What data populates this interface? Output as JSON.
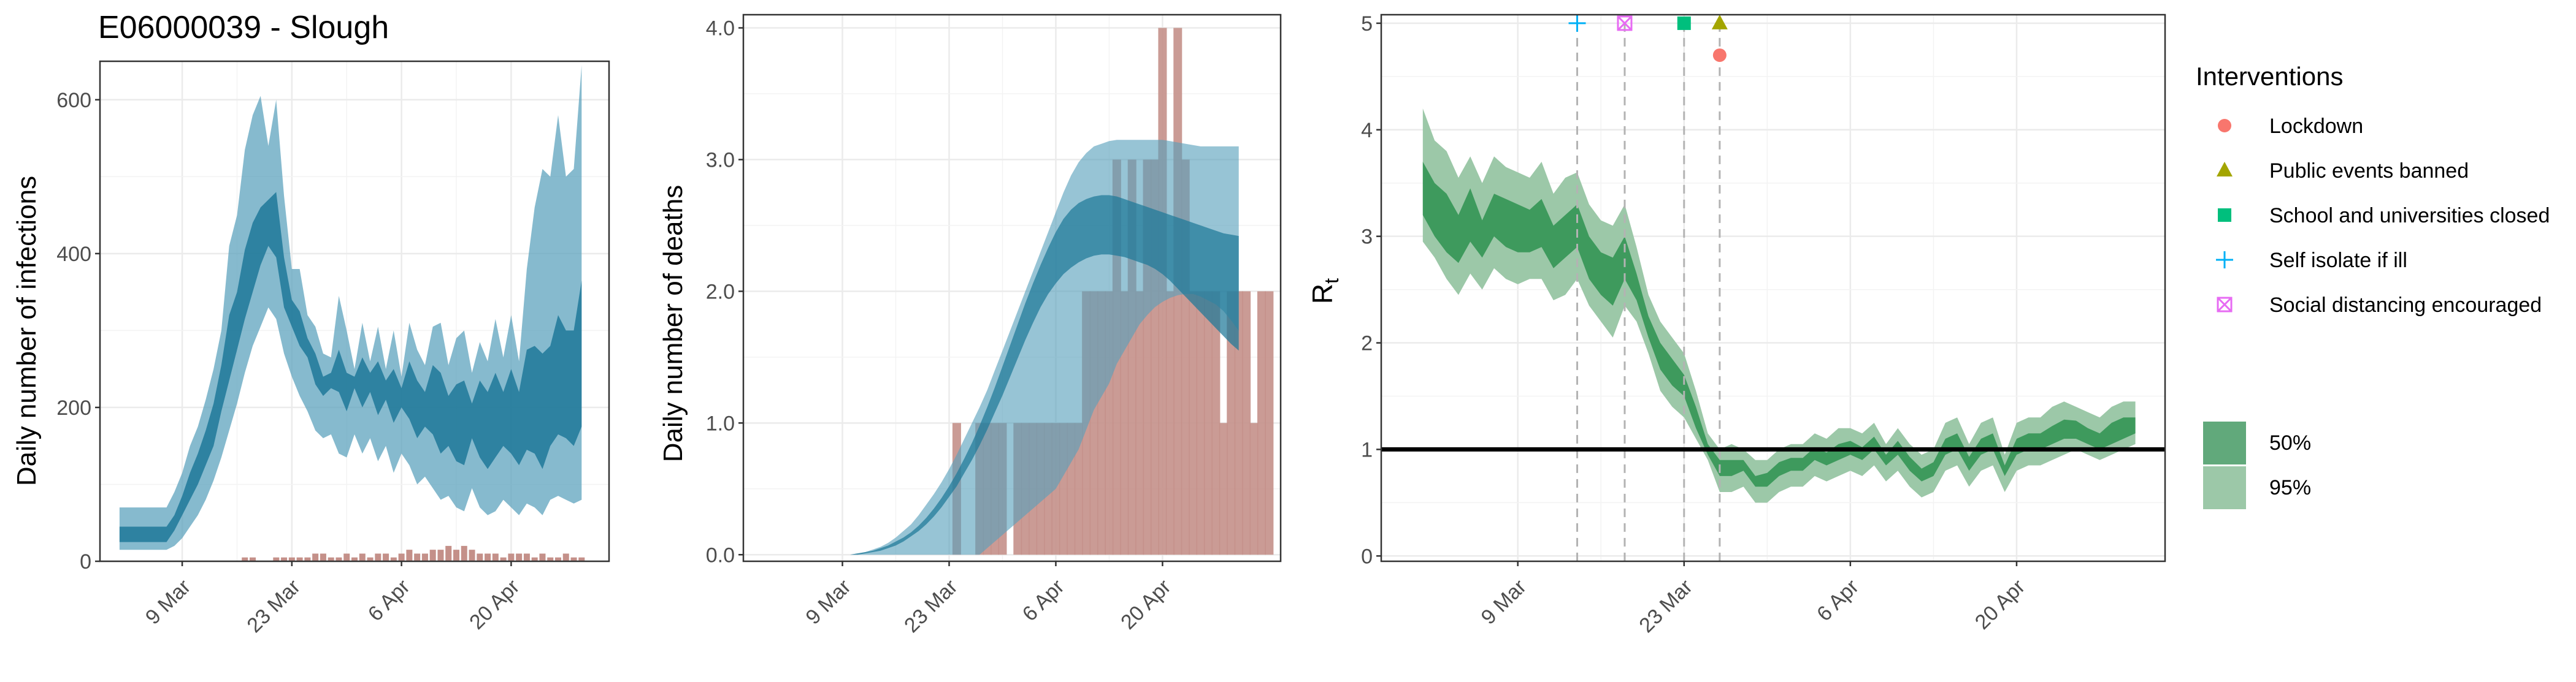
{
  "title": "E06000039 - Slough",
  "colors": {
    "infections_band": "#57a0bb",
    "infections_band_alpha": 0.65,
    "infections_inner": "#1f7899",
    "deaths_bar": "#c49089",
    "rt_band95": "#9cc8a8",
    "rt_band50": "#3e9a5d",
    "grid": "#ebebeb",
    "panel_border": "#333333",
    "lockdown": "#f8766d",
    "public_events": "#a3a500",
    "schools": "#00bf7d",
    "self_isolate": "#00b0f6",
    "social_distancing": "#e76bf3"
  },
  "chart_data": [
    {
      "type": "area",
      "id": "infections",
      "ylabel": "Daily number of infections",
      "xlabel": "",
      "x_ticks": [
        "9 Mar",
        "23 Mar",
        "6 Apr",
        "20 Apr"
      ],
      "x_tick_days": [
        8,
        22,
        36,
        50
      ],
      "y_ticks": [
        "0",
        "200",
        "400",
        "600"
      ],
      "y_tick_values": [
        0,
        200,
        400,
        600
      ],
      "xlim": [
        -2.5,
        62.5
      ],
      "ylim": [
        0,
        650
      ],
      "series": [
        {
          "x_start_day": 0,
          "lo95": [
            15,
            15,
            15,
            15,
            15,
            15,
            15,
            20,
            30,
            45,
            60,
            80,
            105,
            135,
            170,
            205,
            245,
            280,
            305,
            330,
            315,
            270,
            240,
            215,
            195,
            170,
            160,
            165,
            140,
            135,
            165,
            140,
            160,
            130,
            150,
            115,
            140,
            125,
            100,
            110,
            95,
            80,
            85,
            70,
            65,
            95,
            70,
            60,
            65,
            80,
            70,
            60,
            75,
            70,
            60,
            80,
            85,
            80,
            75,
            80
          ],
          "hi95": [
            70,
            70,
            70,
            70,
            70,
            70,
            70,
            90,
            115,
            150,
            175,
            210,
            250,
            300,
            410,
            450,
            535,
            580,
            605,
            540,
            600,
            475,
            380,
            380,
            320,
            305,
            270,
            265,
            345,
            300,
            250,
            310,
            260,
            305,
            250,
            300,
            240,
            310,
            275,
            255,
            305,
            310,
            255,
            290,
            300,
            245,
            285,
            260,
            315,
            265,
            320,
            260,
            380,
            460,
            510,
            500,
            580,
            500,
            510,
            645
          ],
          "lo50": [
            25,
            25,
            25,
            25,
            25,
            25,
            25,
            40,
            60,
            80,
            100,
            125,
            150,
            195,
            235,
            275,
            315,
            350,
            385,
            410,
            395,
            330,
            305,
            280,
            265,
            230,
            215,
            225,
            220,
            195,
            225,
            200,
            220,
            190,
            210,
            180,
            200,
            185,
            160,
            175,
            165,
            140,
            150,
            130,
            125,
            160,
            135,
            120,
            135,
            150,
            140,
            125,
            145,
            140,
            120,
            150,
            165,
            160,
            150,
            175
          ],
          "hi50": [
            45,
            45,
            45,
            45,
            45,
            45,
            45,
            60,
            85,
            115,
            140,
            170,
            205,
            255,
            320,
            350,
            405,
            440,
            460,
            470,
            480,
            395,
            340,
            325,
            290,
            270,
            240,
            245,
            275,
            245,
            240,
            265,
            245,
            260,
            235,
            250,
            225,
            260,
            235,
            220,
            255,
            245,
            215,
            230,
            235,
            205,
            235,
            220,
            245,
            220,
            250,
            220,
            275,
            280,
            270,
            280,
            320,
            300,
            300,
            365
          ],
          "bars": [
            0,
            0,
            0,
            0,
            0,
            0,
            0,
            0,
            0,
            0,
            0,
            0,
            0,
            0,
            0,
            0,
            5,
            5,
            0,
            0,
            5,
            5,
            5,
            5,
            5,
            10,
            10,
            5,
            5,
            10,
            5,
            10,
            5,
            10,
            10,
            5,
            10,
            15,
            10,
            10,
            15,
            15,
            20,
            15,
            20,
            15,
            10,
            10,
            10,
            5,
            10,
            10,
            10,
            5,
            10,
            5,
            5,
            10,
            5,
            5
          ]
        }
      ]
    },
    {
      "type": "area",
      "id": "deaths",
      "ylabel": "Daily number of deaths",
      "xlabel": "",
      "x_ticks": [
        "9 Mar",
        "23 Mar",
        "6 Apr",
        "20 Apr"
      ],
      "x_tick_days": [
        8,
        22,
        36,
        50
      ],
      "y_ticks": [
        "0.0",
        "1.0",
        "2.0",
        "3.0",
        "4.0"
      ],
      "y_tick_values": [
        0,
        1,
        2,
        3,
        4
      ],
      "xlim": [
        -5,
        65.5
      ],
      "ylim": [
        -0.05,
        4.1
      ],
      "series": [
        {
          "x_start_day": 0,
          "lo95": [
            0,
            0,
            0,
            0,
            0,
            0,
            0,
            0,
            0,
            0,
            0,
            0,
            0,
            0,
            0,
            0,
            0,
            0,
            0,
            0,
            0,
            0,
            0,
            0,
            0,
            0,
            0,
            0.05,
            0.1,
            0.15,
            0.2,
            0.25,
            0.3,
            0.35,
            0.4,
            0.45,
            0.5,
            0.6,
            0.7,
            0.8,
            0.95,
            1.1,
            1.2,
            1.3,
            1.45,
            1.55,
            1.65,
            1.75,
            1.82,
            1.88,
            1.92,
            1.95,
            1.97,
            1.98,
            1.98,
            1.96,
            1.93,
            1.9,
            1.85,
            1.78,
            1.7
          ],
          "hi95": [
            0,
            0,
            0,
            0,
            0,
            0,
            0,
            0,
            0,
            0,
            0.01,
            0.02,
            0.04,
            0.06,
            0.09,
            0.13,
            0.18,
            0.23,
            0.3,
            0.38,
            0.46,
            0.55,
            0.65,
            0.76,
            0.88,
            1.0,
            1.12,
            1.25,
            1.4,
            1.55,
            1.7,
            1.85,
            2.0,
            2.15,
            2.3,
            2.45,
            2.6,
            2.75,
            2.88,
            2.98,
            3.05,
            3.1,
            3.12,
            3.14,
            3.15,
            3.15,
            3.15,
            3.15,
            3.15,
            3.15,
            3.15,
            3.14,
            3.13,
            3.12,
            3.11,
            3.1,
            3.1,
            3.1,
            3.1,
            3.1,
            3.1
          ],
          "lo50": [
            0,
            0,
            0,
            0,
            0,
            0,
            0,
            0,
            0,
            0,
            0,
            0.01,
            0.02,
            0.03,
            0.05,
            0.07,
            0.1,
            0.14,
            0.18,
            0.23,
            0.29,
            0.36,
            0.44,
            0.52,
            0.62,
            0.72,
            0.83,
            0.95,
            1.08,
            1.21,
            1.35,
            1.49,
            1.63,
            1.76,
            1.88,
            1.98,
            2.06,
            2.13,
            2.18,
            2.22,
            2.25,
            2.27,
            2.28,
            2.28,
            2.27,
            2.26,
            2.24,
            2.22,
            2.2,
            2.17,
            2.13,
            2.08,
            2.02,
            1.96,
            1.9,
            1.84,
            1.78,
            1.72,
            1.66,
            1.6,
            1.55
          ],
          "hi50": [
            0,
            0,
            0,
            0,
            0,
            0,
            0,
            0,
            0,
            0,
            0.01,
            0.02,
            0.03,
            0.05,
            0.07,
            0.1,
            0.13,
            0.17,
            0.22,
            0.28,
            0.35,
            0.43,
            0.52,
            0.62,
            0.73,
            0.85,
            0.98,
            1.12,
            1.27,
            1.43,
            1.59,
            1.75,
            1.91,
            2.06,
            2.2,
            2.33,
            2.45,
            2.55,
            2.62,
            2.67,
            2.7,
            2.72,
            2.73,
            2.73,
            2.72,
            2.7,
            2.68,
            2.66,
            2.64,
            2.62,
            2.6,
            2.58,
            2.56,
            2.54,
            2.52,
            2.5,
            2.48,
            2.46,
            2.44,
            2.43,
            2.42
          ],
          "bars": [
            0,
            0,
            0,
            0,
            0,
            0,
            0,
            0,
            0,
            0,
            0,
            0,
            0,
            0,
            0,
            0,
            0,
            0,
            0,
            0,
            0,
            0,
            0,
            1,
            0,
            0,
            1,
            1,
            1,
            1,
            0,
            1,
            1,
            1,
            1,
            1,
            1,
            1,
            1,
            1,
            2,
            2,
            2,
            2,
            3,
            2,
            3,
            2,
            3,
            3,
            4,
            2,
            4,
            3,
            2,
            2,
            2,
            2,
            1,
            2,
            2,
            2,
            1,
            2,
            2
          ]
        }
      ]
    },
    {
      "type": "area",
      "id": "rt",
      "ylabel": "R",
      "ylabel_subscript": "t",
      "xlabel": "",
      "x_ticks": [
        "9 Mar",
        "23 Mar",
        "6 Apr",
        "20 Apr"
      ],
      "x_tick_days": [
        8,
        22,
        36,
        50
      ],
      "y_ticks": [
        "0",
        "1",
        "2",
        "3",
        "4",
        "5"
      ],
      "y_tick_values": [
        0,
        1,
        2,
        3,
        4,
        5
      ],
      "xlim": [
        -3.5,
        62.5
      ],
      "ylim": [
        -0.05,
        5.08
      ],
      "reference_line": 1,
      "intervention_days": [
        13,
        17,
        22,
        25
      ],
      "series": [
        {
          "name": "95%",
          "x_start_day": 0,
          "lo95": [
            2.95,
            2.8,
            2.6,
            2.45,
            2.65,
            2.5,
            2.7,
            2.6,
            2.55,
            2.6,
            2.6,
            2.4,
            2.45,
            2.6,
            2.35,
            2.2,
            2.05,
            2.35,
            2.2,
            1.9,
            1.55,
            1.4,
            1.3,
            1.1,
            0.9,
            0.6,
            0.6,
            0.65,
            0.5,
            0.5,
            0.6,
            0.65,
            0.65,
            0.75,
            0.7,
            0.75,
            0.8,
            0.75,
            0.85,
            0.7,
            0.8,
            0.65,
            0.55,
            0.6,
            0.8,
            0.85,
            0.65,
            0.8,
            0.85,
            0.6,
            0.8,
            0.85,
            0.85,
            0.9,
            0.95,
            1.0,
            0.95,
            0.9,
            0.95,
            1.0,
            1.05
          ],
          "hi95": [
            4.2,
            3.9,
            3.8,
            3.55,
            3.75,
            3.5,
            3.75,
            3.65,
            3.6,
            3.55,
            3.7,
            3.4,
            3.55,
            3.6,
            3.3,
            3.15,
            3.1,
            3.3,
            2.9,
            2.45,
            2.2,
            2.05,
            1.9,
            1.55,
            1.15,
            1.0,
            1.05,
            1.0,
            0.9,
            0.9,
            1.0,
            1.05,
            1.05,
            1.15,
            1.1,
            1.2,
            1.2,
            1.15,
            1.25,
            1.05,
            1.2,
            1.05,
            0.95,
            1.0,
            1.25,
            1.3,
            1.05,
            1.25,
            1.3,
            0.95,
            1.25,
            1.3,
            1.3,
            1.4,
            1.45,
            1.4,
            1.35,
            1.3,
            1.4,
            1.45,
            1.45
          ]
        },
        {
          "name": "50%",
          "x_start_day": 0,
          "lo50": [
            3.2,
            3.0,
            2.85,
            2.75,
            2.95,
            2.8,
            3.0,
            2.9,
            2.85,
            2.85,
            2.9,
            2.7,
            2.8,
            2.9,
            2.6,
            2.45,
            2.35,
            2.6,
            2.4,
            2.05,
            1.75,
            1.6,
            1.5,
            1.2,
            0.95,
            0.75,
            0.75,
            0.8,
            0.65,
            0.65,
            0.75,
            0.8,
            0.8,
            0.9,
            0.85,
            0.9,
            0.95,
            0.9,
            1.0,
            0.85,
            0.95,
            0.8,
            0.7,
            0.75,
            0.95,
            1.0,
            0.8,
            0.95,
            1.0,
            0.75,
            0.95,
            1.0,
            1.0,
            1.05,
            1.1,
            1.1,
            1.05,
            1.0,
            1.05,
            1.1,
            1.15
          ],
          "hi50": [
            3.7,
            3.5,
            3.4,
            3.2,
            3.45,
            3.15,
            3.4,
            3.35,
            3.3,
            3.25,
            3.35,
            3.1,
            3.2,
            3.3,
            3.0,
            2.85,
            2.8,
            3.0,
            2.65,
            2.25,
            2.0,
            1.85,
            1.7,
            1.4,
            1.05,
            0.9,
            0.9,
            0.9,
            0.75,
            0.78,
            0.88,
            0.92,
            0.92,
            1.02,
            0.97,
            1.05,
            1.08,
            1.02,
            1.12,
            0.95,
            1.08,
            0.93,
            0.82,
            0.88,
            1.1,
            1.15,
            0.93,
            1.1,
            1.15,
            0.85,
            1.1,
            1.15,
            1.15,
            1.22,
            1.28,
            1.27,
            1.2,
            1.15,
            1.25,
            1.3,
            1.3
          ]
        }
      ]
    }
  ],
  "legend": {
    "title": "Interventions",
    "items": [
      {
        "label": "Lockdown",
        "shape": "circle",
        "color": "#f8766d"
      },
      {
        "label": "Public events banned",
        "shape": "triangle",
        "color": "#a3a500"
      },
      {
        "label": "School and universities closed",
        "shape": "square",
        "color": "#00bf7d"
      },
      {
        "label": "Self isolate if ill",
        "shape": "plus",
        "color": "#00b0f6"
      },
      {
        "label": "Social distancing encouraged",
        "shape": "boxcross",
        "color": "#e76bf3"
      }
    ],
    "band_items": [
      {
        "label": "50%",
        "color": "#61a97b"
      },
      {
        "label": "95%",
        "color": "#9cc8a8"
      }
    ]
  }
}
